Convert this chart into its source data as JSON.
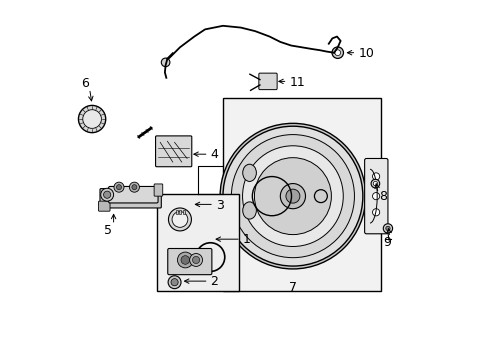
{
  "background_color": "#ffffff",
  "fig_width": 4.89,
  "fig_height": 3.6,
  "dpi": 100,
  "labels": {
    "1": [
      0.485,
      0.345,
      0.415,
      0.345
    ],
    "2": [
      0.435,
      0.295,
      0.395,
      0.315
    ],
    "3": [
      0.415,
      0.435,
      0.36,
      0.435
    ],
    "4": [
      0.39,
      0.565,
      0.34,
      0.565
    ],
    "5": [
      0.12,
      0.235,
      0.12,
      0.27
    ],
    "6": [
      0.068,
      0.76,
      0.068,
      0.72
    ],
    "7": [
      0.64,
      0.175,
      0.64,
      0.175
    ],
    "8": [
      0.875,
      0.455,
      0.86,
      0.49
    ],
    "9": [
      0.91,
      0.34,
      0.895,
      0.37
    ],
    "10": [
      0.87,
      0.84,
      0.83,
      0.84
    ],
    "11": [
      0.655,
      0.72,
      0.61,
      0.72
    ]
  }
}
